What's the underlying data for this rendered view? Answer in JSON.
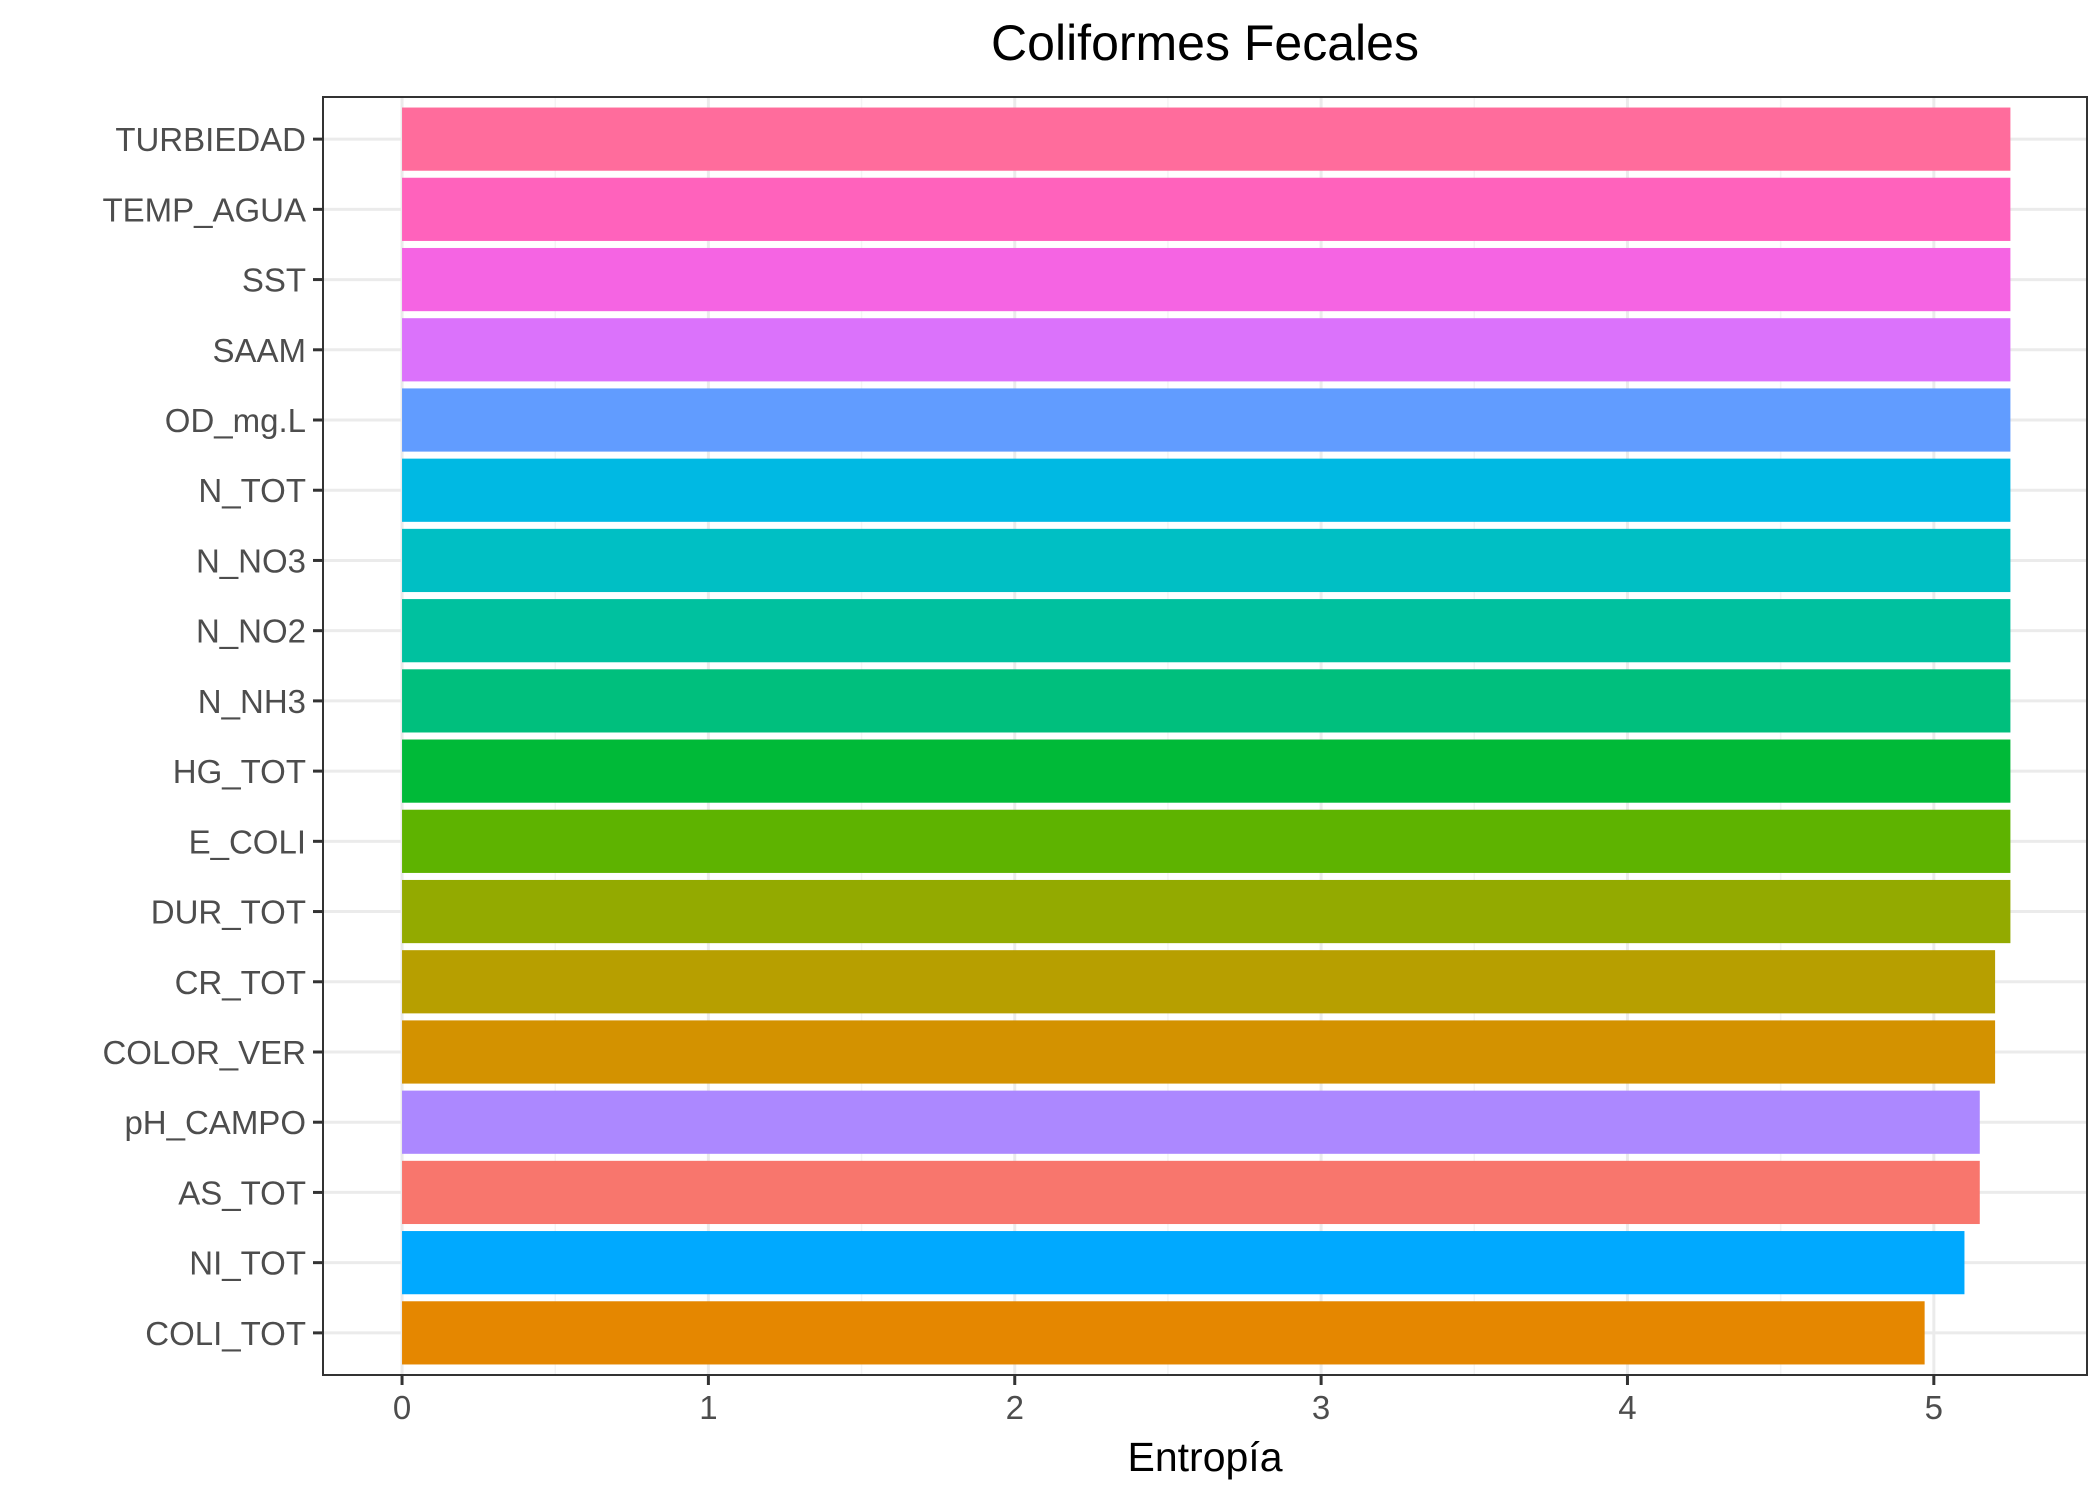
{
  "chart_data": {
    "type": "bar",
    "orientation": "horizontal",
    "title": "Coliformes Fecales",
    "xlabel": "Entropía",
    "ylabel": "",
    "xlim": [
      -0.258,
      5.5
    ],
    "x_ticks": [
      0,
      1,
      2,
      3,
      4,
      5
    ],
    "grid": true,
    "legend": "none",
    "categories": [
      "TURBIEDAD",
      "TEMP_AGUA",
      "SST",
      "SAAM",
      "OD_mg.L",
      "N_TOT",
      "N_NO3",
      "N_NO2",
      "N_NH3",
      "HG_TOT",
      "E_COLI",
      "DUR_TOT",
      "CR_TOT",
      "COLOR_VER",
      "pH_CAMPO",
      "AS_TOT",
      "NI_TOT",
      "COLI_TOT"
    ],
    "values": [
      5.25,
      5.25,
      5.25,
      5.25,
      5.25,
      5.25,
      5.25,
      5.25,
      5.25,
      5.25,
      5.25,
      5.25,
      5.2,
      5.2,
      5.15,
      5.15,
      5.1,
      4.97
    ],
    "colors": [
      "#FF6C9C",
      "#FF62BC",
      "#F564E3",
      "#DB72FB",
      "#619CFF",
      "#00B9E3",
      "#00BFC4",
      "#00C19F",
      "#00BF7D",
      "#00BA38",
      "#5EB300",
      "#93AA00",
      "#B79F00",
      "#D39200",
      "#AC88FF",
      "#F8766D",
      "#00A9FF",
      "#E58700"
    ]
  }
}
